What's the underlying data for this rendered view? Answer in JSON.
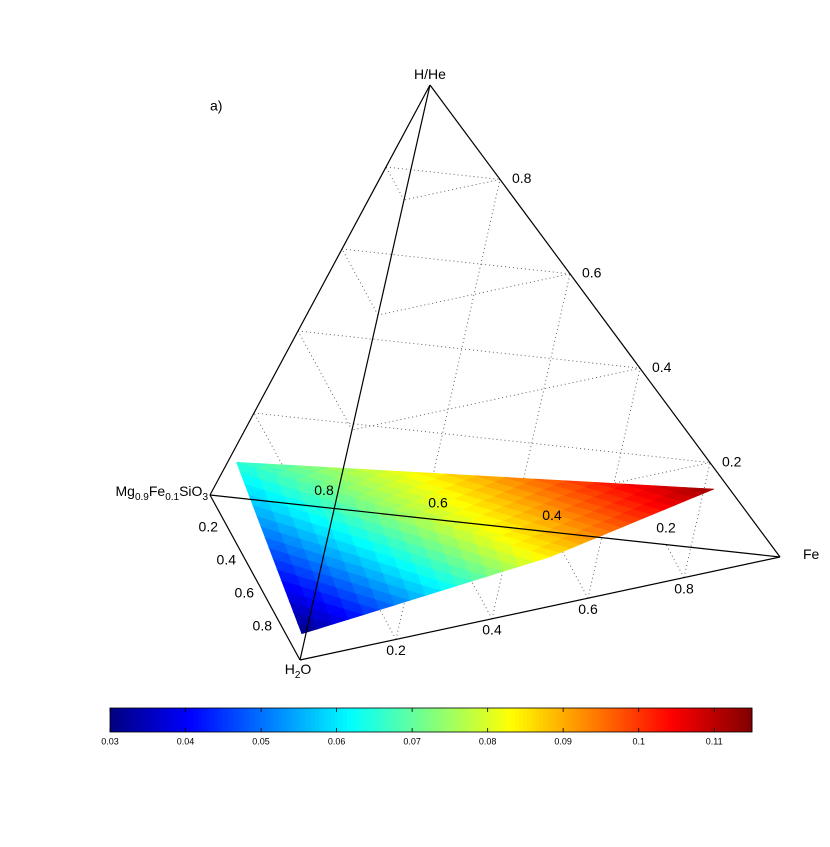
{
  "chart_data": {
    "type": "tetrahedron",
    "panel_label": "a)",
    "vertices": {
      "top": [
        {
          "text": "H/He"
        }
      ],
      "right": [
        {
          "text": "Fe"
        }
      ],
      "bottom": [
        {
          "text": "H"
        },
        {
          "text": "2",
          "sub": true
        },
        {
          "text": "O"
        }
      ],
      "left": [
        {
          "text": "Mg"
        },
        {
          "text": "0.9",
          "sub": true
        },
        {
          "text": "Fe"
        },
        {
          "text": "0.1",
          "sub": true
        },
        {
          "text": "SiO"
        },
        {
          "text": "3",
          "sub": true
        }
      ]
    },
    "hhe_ticks": [
      0.2,
      0.4,
      0.6,
      0.8
    ],
    "fe_ticks": [
      0.2,
      0.4,
      0.6,
      0.8
    ],
    "h2o_ticks": [
      0.2,
      0.4,
      0.6,
      0.8
    ],
    "silicate_ticks": [
      0.2,
      0.4,
      0.6,
      0.8
    ],
    "surface": [
      {
        "fe": 0,
        "h2o": 0.05,
        "hhe": 0.1,
        "value": 0.065
      },
      {
        "fe": 0.83,
        "h2o": 0,
        "hhe": 0.14,
        "value": 0.113
      },
      {
        "fe": 0.53,
        "h2o": 0.3,
        "hhe": 0.05,
        "value": 0.085
      },
      {
        "fe": 0.03,
        "h2o": 0.83,
        "hhe": 0,
        "value": 0.03
      }
    ],
    "colormap": "jet",
    "clim": [
      0.03,
      0.115
    ],
    "colorbar_ticks": [
      0.03,
      0.04,
      0.05,
      0.06,
      0.07,
      0.08,
      0.09,
      0.1,
      0.11
    ]
  }
}
